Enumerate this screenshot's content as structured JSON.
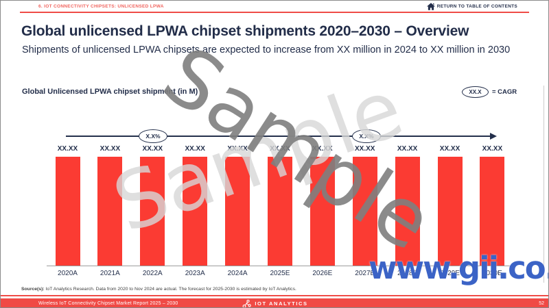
{
  "header": {
    "section_label": "6. IOT CONNECTIVITY CHIPSETS: UNLICENSED LPWA",
    "return_link": "RETURN TO TABLE OF CONTENTS"
  },
  "title": "Global unlicensed LPWA chipset shipments 2020–2030 – Overview",
  "subtitle": "Shipments of unlicensed LPWA chipsets are expected to increase from XX million in 2024 to XX million in 2030",
  "chart": {
    "title": "Global Unlicensed LPWA chipset shipment (in M)",
    "legend": {
      "oval_label": "XX.X",
      "legend_text": "= CAGR"
    },
    "cagr_ovals": [
      {
        "label": "X.X%"
      },
      {
        "label": "X.X%"
      }
    ],
    "categories": [
      "2020A",
      "2021A",
      "2022A",
      "2023A",
      "2024A",
      "2025E",
      "2026E",
      "2027E",
      "2028E",
      "2029E",
      "2030E"
    ],
    "value_labels": [
      "XX.XX",
      "XX.XX",
      "XX.XX",
      "XX.XX",
      "XX.XX",
      "XX.XX",
      "XX.XX",
      "XX.XX",
      "XX.XX",
      "XX.XX",
      "XX.XX"
    ],
    "bar_color": "#fb3b33"
  },
  "chart_data": {
    "type": "bar",
    "title": "Global Unlicensed LPWA chipset shipment (in M)",
    "categories": [
      "2020A",
      "2021A",
      "2022A",
      "2023A",
      "2024A",
      "2025E",
      "2026E",
      "2027E",
      "2028E",
      "2029E",
      "2030E"
    ],
    "values": [
      "XX.XX",
      "XX.XX",
      "XX.XX",
      "XX.XX",
      "XX.XX",
      "XX.XX",
      "XX.XX",
      "XX.XX",
      "XX.XX",
      "XX.XX",
      "XX.XX"
    ],
    "values_masked": true,
    "annotations": [
      "X.X% CAGR (actual period)",
      "X.X% CAGR (forecast period)"
    ],
    "legend": "XX.X = CAGR",
    "xlabel": "",
    "ylabel": ""
  },
  "watermarks": {
    "sample": "Sample",
    "site": "www.gii.co.jp"
  },
  "source": {
    "prefix": "Source(s):",
    "text": " IoT Analytics Research. Data from 2020 to Nov 2024 are actual. The forecast for 2025-2030 is estimated by IoT Analytics."
  },
  "footer": {
    "report": "Wireless IoT Connectivity Chipset Market Report 2025 – 2030",
    "brand": "IOT ANALYTICS",
    "page": "52"
  }
}
